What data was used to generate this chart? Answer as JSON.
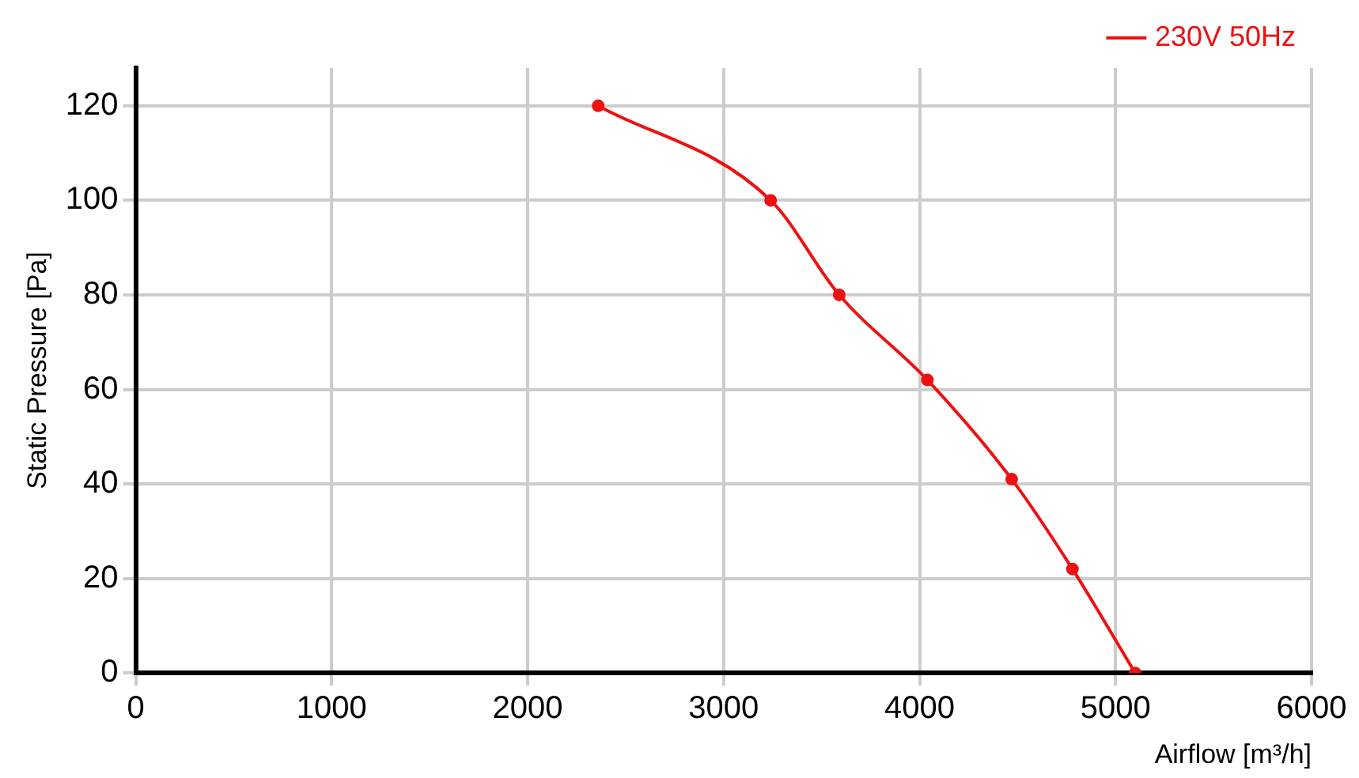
{
  "chart_data": {
    "type": "line",
    "xlabel": "Airflow [m³/h]",
    "ylabel": "Static Pressure [Pa]",
    "x": [
      2360,
      3240,
      3590,
      4040,
      4470,
      4780,
      5100
    ],
    "series": [
      {
        "name": "230V 50Hz",
        "color": "#ee1111",
        "values": [
          120,
          100,
          80,
          62,
          41,
          22,
          0
        ]
      }
    ],
    "xlim": [
      0,
      6000
    ],
    "xticks": [
      0,
      1000,
      2000,
      3000,
      4000,
      5000,
      6000
    ],
    "ylim": [
      0,
      128
    ],
    "yticks": [
      0,
      20,
      40,
      60,
      80,
      100,
      120
    ],
    "grid": true,
    "legend": "top right",
    "marker": "circle",
    "line_style": "solid"
  }
}
